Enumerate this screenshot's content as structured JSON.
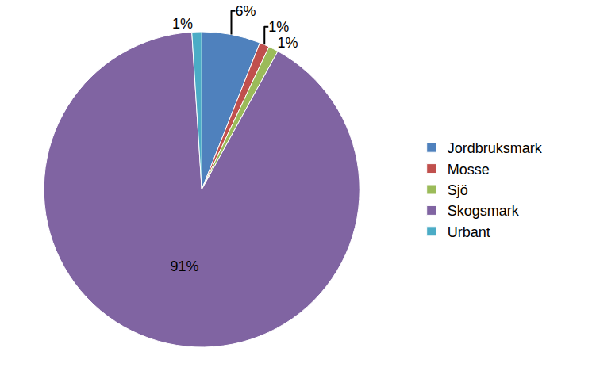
{
  "chart_data": {
    "type": "pie",
    "categories": [
      "Jordbruksmark",
      "Mosse",
      "Sjö",
      "Skogsmark",
      "Urbant"
    ],
    "values": [
      6,
      1,
      1,
      91,
      1
    ],
    "value_labels": [
      "6%",
      "1%",
      "1%",
      "91%",
      "1%"
    ],
    "colors": [
      "#4F81BD",
      "#C0504D",
      "#9BBB59",
      "#8064A2",
      "#4BACC6"
    ],
    "data_labels": true,
    "legend": "right"
  }
}
